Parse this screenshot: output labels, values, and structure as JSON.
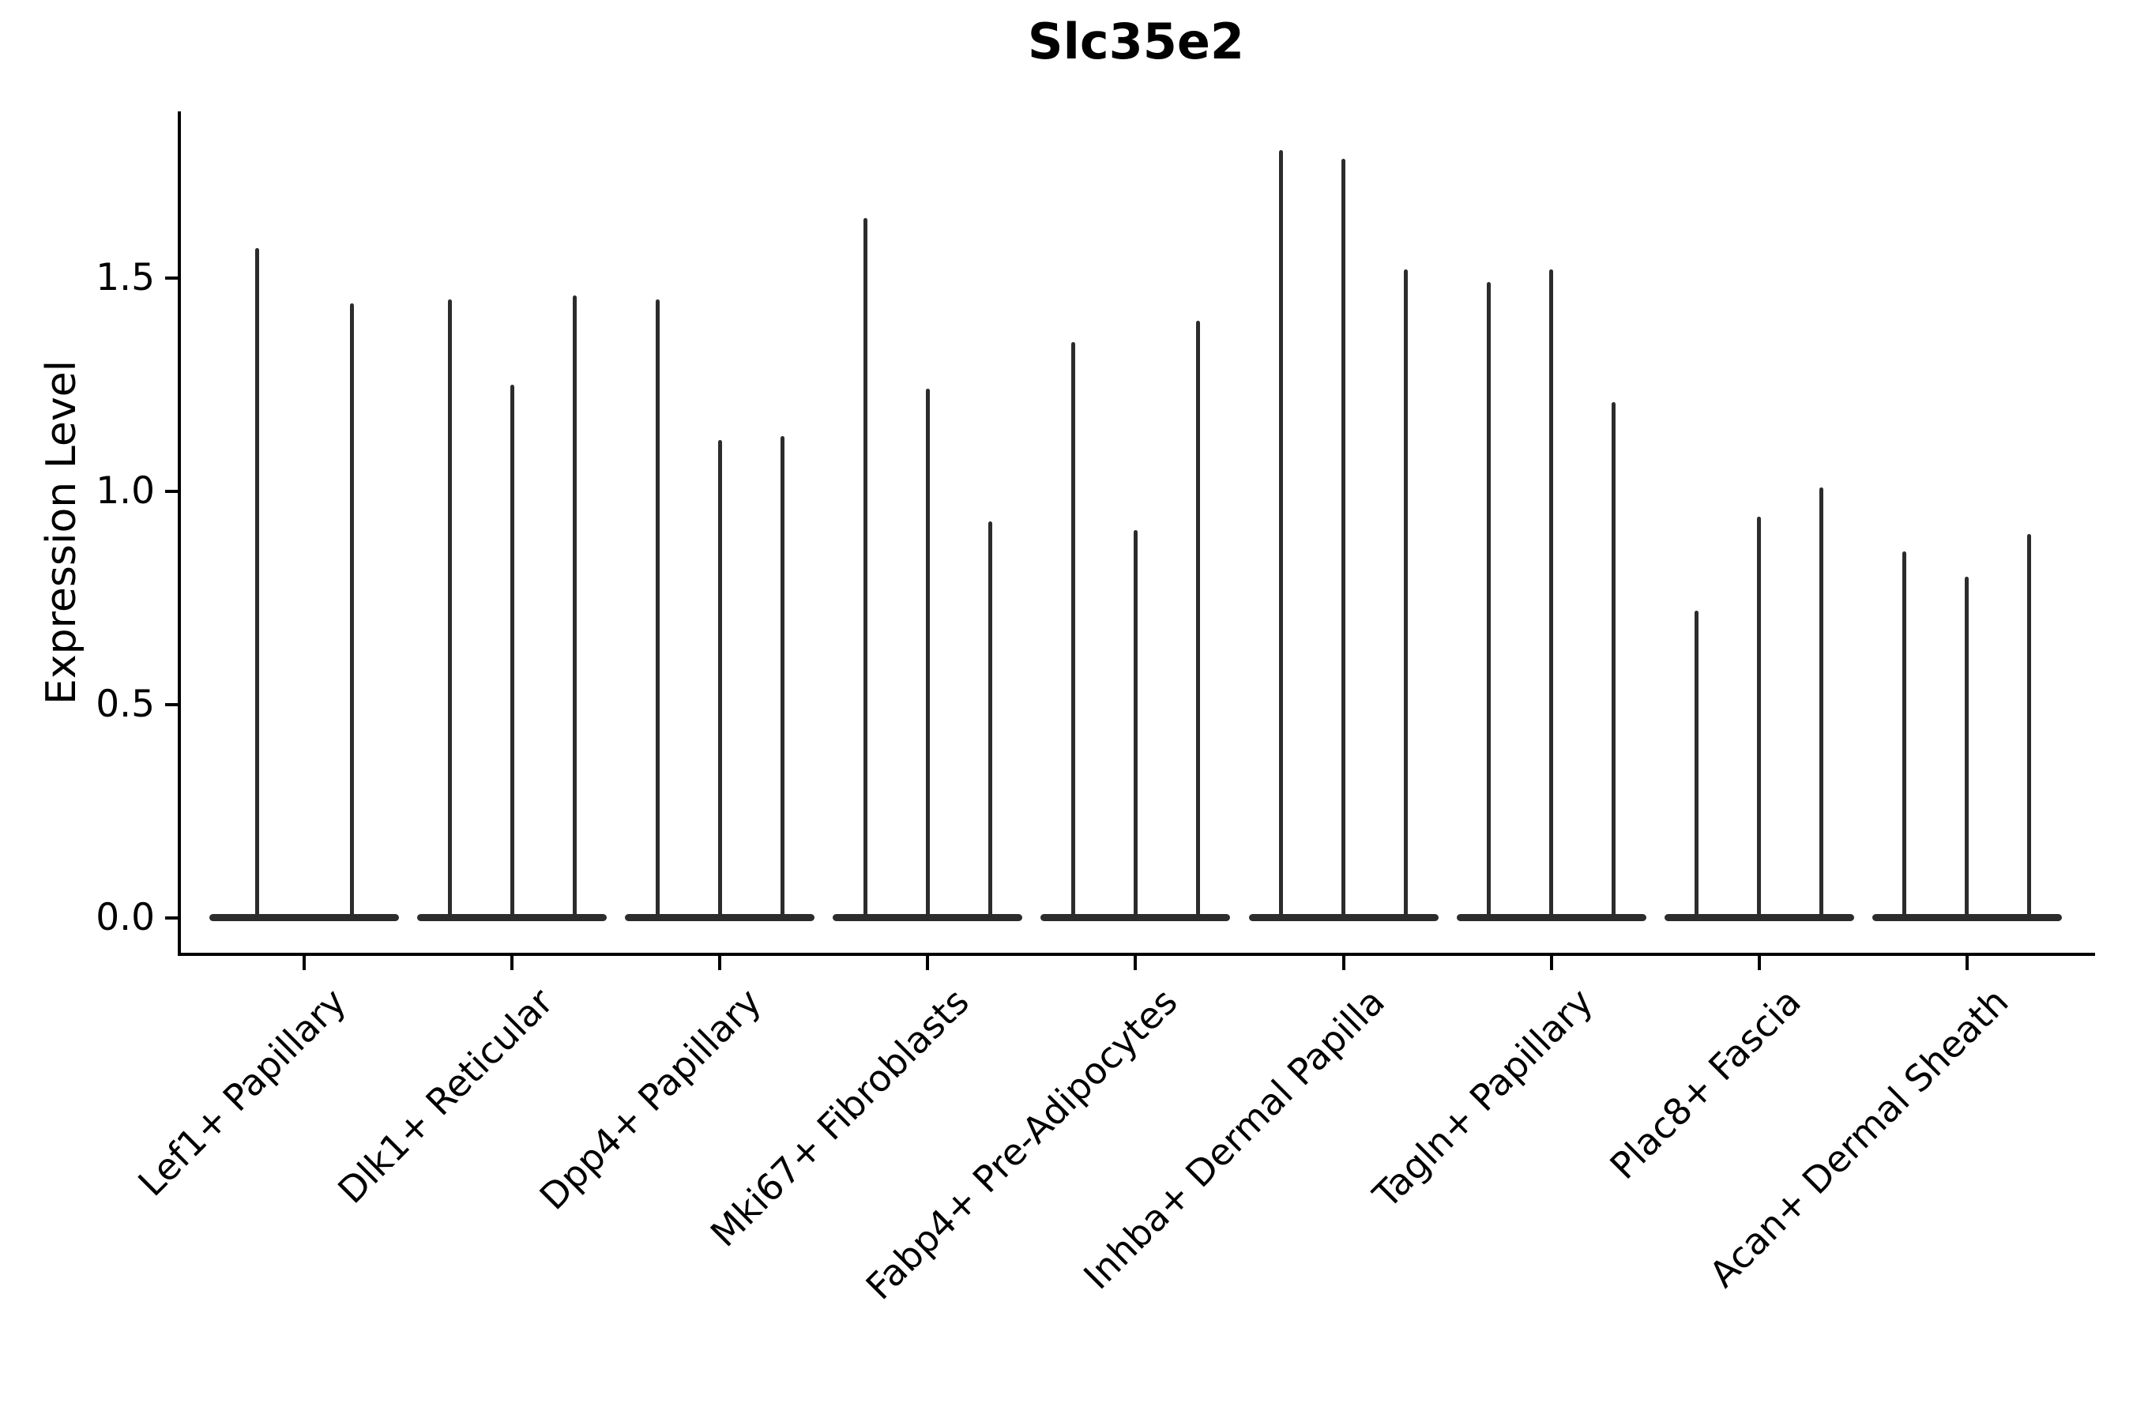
{
  "title": "Slc35e2",
  "chart_data": {
    "type": "violin",
    "title": "Slc35e2",
    "ylabel": "Expression Level",
    "ylim": [
      -0.09,
      1.89
    ],
    "ytick_labels": [
      "0.0",
      "0.5",
      "1.0",
      "1.5"
    ],
    "ytick_values": [
      0.0,
      0.5,
      1.0,
      1.5
    ],
    "grid": false,
    "legend": null,
    "categories": [
      "Lef1+ Papillary",
      "Dlk1+ Reticular",
      "Dpp4+ Papillary",
      "Mki67+ Fibroblasts",
      "Fabp4+ Pre-Adipocytes",
      "Inhba+ Dermal Papilla",
      "Tagln+ Papillary",
      "Plac8+ Fascia",
      "Acan+ Dermal Sheath"
    ],
    "groups": [
      {
        "label": "Lef1+ Papillary",
        "violin_max": [
          1.57,
          1.44
        ]
      },
      {
        "label": "Dlk1+ Reticular",
        "violin_max": [
          1.45,
          1.25,
          1.46
        ]
      },
      {
        "label": "Dpp4+ Papillary",
        "violin_max": [
          1.45,
          1.12,
          1.13
        ]
      },
      {
        "label": "Mki67+ Fibroblasts",
        "violin_max": [
          1.64,
          1.24,
          0.93
        ]
      },
      {
        "label": "Fabp4+ Pre-Adipocytes",
        "violin_max": [
          1.35,
          0.91,
          1.4
        ]
      },
      {
        "label": "Inhba+ Dermal Papilla",
        "violin_max": [
          1.8,
          1.78,
          1.52
        ]
      },
      {
        "label": "Tagln+ Papillary",
        "violin_max": [
          1.49,
          1.52,
          1.21
        ]
      },
      {
        "label": "Plac8+ Fascia",
        "violin_max": [
          0.72,
          0.94,
          1.01
        ]
      },
      {
        "label": "Acan+ Dermal Sheath",
        "violin_max": [
          0.86,
          0.8,
          0.9
        ]
      }
    ],
    "colors": {
      "violin": "#2c2c2c",
      "axis": "#000000",
      "text": "#000000",
      "background": "#ffffff"
    }
  }
}
